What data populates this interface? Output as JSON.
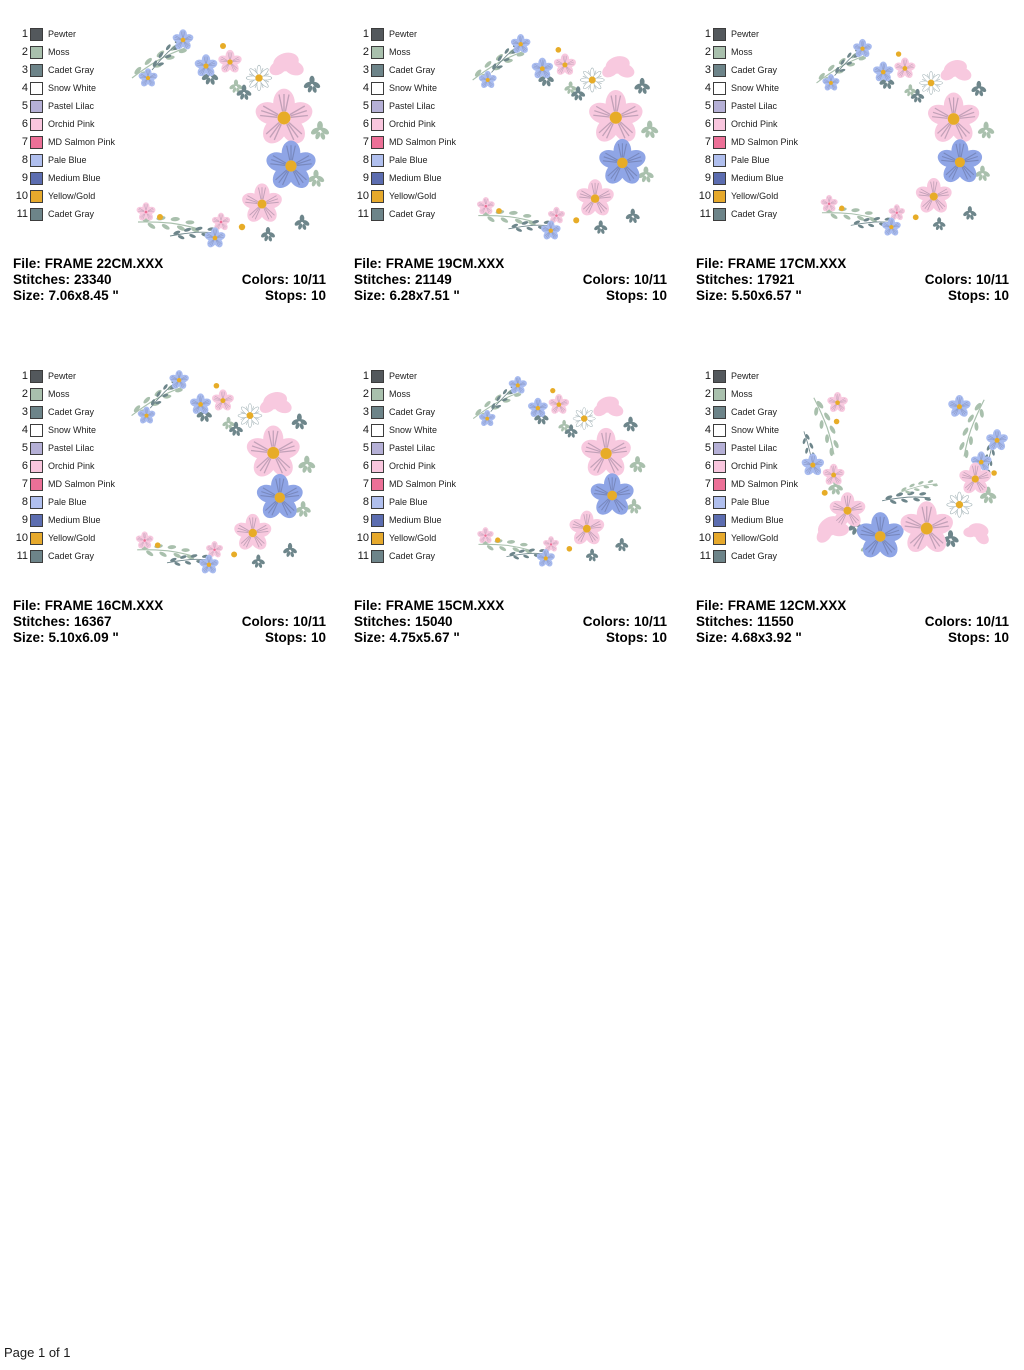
{
  "page": {
    "footer": "Page 1 of 1"
  },
  "legend": {
    "items": [
      {
        "num": "1",
        "name": "Pewter",
        "color": "#53585c"
      },
      {
        "num": "2",
        "name": "Moss",
        "color": "#a9c0ad"
      },
      {
        "num": "3",
        "name": "Cadet Gray",
        "color": "#6d8489"
      },
      {
        "num": "4",
        "name": "Snow White",
        "color": "#ffffff"
      },
      {
        "num": "5",
        "name": "Pastel Lilac",
        "color": "#b5b0d6"
      },
      {
        "num": "6",
        "name": "Orchid Pink",
        "color": "#f9c6de"
      },
      {
        "num": "7",
        "name": "MD Salmon Pink",
        "color": "#ec7097"
      },
      {
        "num": "8",
        "name": "Pale Blue",
        "color": "#b0bfee"
      },
      {
        "num": "9",
        "name": "Medium Blue",
        "color": "#5c6db0"
      },
      {
        "num": "10",
        "name": "Yellow/Gold",
        "color": "#e6a92c"
      },
      {
        "num": "11",
        "name": "Cadet Gray",
        "color": "#6d8489"
      }
    ]
  },
  "labels": {
    "file": "File:",
    "stitches": "Stitches:",
    "size": "Size:",
    "colors": "Colors:",
    "stops": "Stops:"
  },
  "cells": [
    {
      "file": "FRAME 22CM.XXX",
      "stitches": "23340",
      "size": "7.06x8.45 \"",
      "colors": "10/11",
      "stops": "10"
    },
    {
      "file": "FRAME 19CM.XXX",
      "stitches": "21149",
      "size": "6.28x7.51 \"",
      "colors": "10/11",
      "stops": "10"
    },
    {
      "file": "FRAME 17CM.XXX",
      "stitches": "17921",
      "size": "5.50x6.57 \"",
      "colors": "10/11",
      "stops": "10"
    },
    {
      "file": "FRAME 16CM.XXX",
      "stitches": "16367",
      "size": "5.10x6.09 \"",
      "colors": "10/11",
      "stops": "10"
    },
    {
      "file": "FRAME 15CM.XXX",
      "stitches": "15040",
      "size": "4.75x5.67 \"",
      "colors": "10/11",
      "stops": "10"
    },
    {
      "file": "FRAME 12CM.XXX",
      "stitches": "11550",
      "size": "4.68x3.92 \"",
      "colors": "10/11",
      "stops": "10"
    }
  ],
  "art_colors": {
    "petal_pink": "#f8c9df",
    "petal_pink_dark": "#ec7097",
    "petal_blue_large": "#8fa5e6",
    "petal_blue_small": "#a9bcf0",
    "flower_center_gold": "#e7ac27",
    "leaf_moss": "#a9c0ad",
    "leaf_slate": "#6e868b",
    "daisy_white": "#ffffff"
  }
}
